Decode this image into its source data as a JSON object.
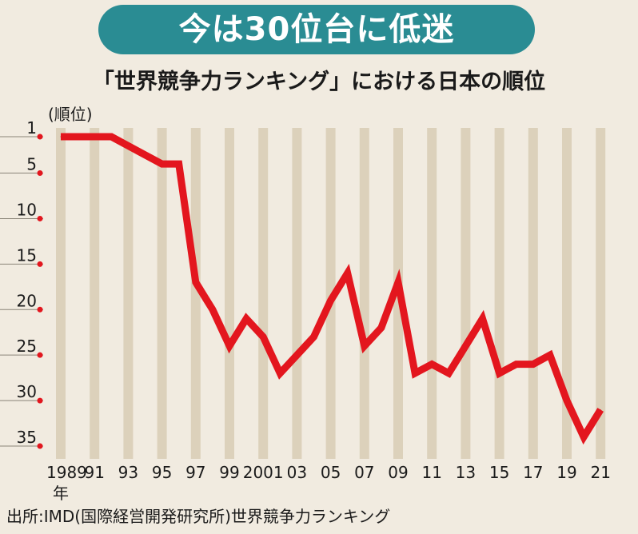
{
  "title": "今は30位台に低迷",
  "subtitle": "「世界競争力ランキング」における日本の順位",
  "source": "出所:IMD(国際経営開発研究所)世界競争力ランキング",
  "colors": {
    "banner": "#2a8c93",
    "background": "#f1ebe0",
    "stripe": "#dcd1bb",
    "line": "#e3161e",
    "tick_marker": "#e3161e"
  },
  "chart_data": {
    "type": "line",
    "ylabel": "(順位)",
    "xlabel": "年",
    "y_inverted": true,
    "ylim": [
      1,
      35
    ],
    "y_ticks": [
      "1",
      "5",
      "10",
      "15",
      "20",
      "25",
      "30",
      "35"
    ],
    "x_tick_labels": [
      "1989",
      "91",
      "93",
      "95",
      "97",
      "99",
      "2001",
      "03",
      "05",
      "07",
      "09",
      "11",
      "13",
      "15",
      "17",
      "19",
      "21"
    ],
    "x": [
      1989,
      1990,
      1991,
      1992,
      1993,
      1994,
      1995,
      1996,
      1997,
      1998,
      1999,
      2000,
      2001,
      2002,
      2003,
      2004,
      2005,
      2006,
      2007,
      2008,
      2009,
      2010,
      2011,
      2012,
      2013,
      2014,
      2015,
      2016,
      2017,
      2018,
      2019,
      2020,
      2021
    ],
    "series": [
      {
        "values": [
          1,
          1,
          1,
          1,
          2,
          3,
          4,
          4,
          17,
          20,
          24,
          21,
          23,
          27,
          25,
          23,
          19,
          16,
          24,
          22,
          17,
          27,
          26,
          27,
          24,
          21,
          27,
          26,
          26,
          25,
          30,
          34,
          31
        ]
      }
    ],
    "grid": "vertical alternating stripes per year"
  }
}
